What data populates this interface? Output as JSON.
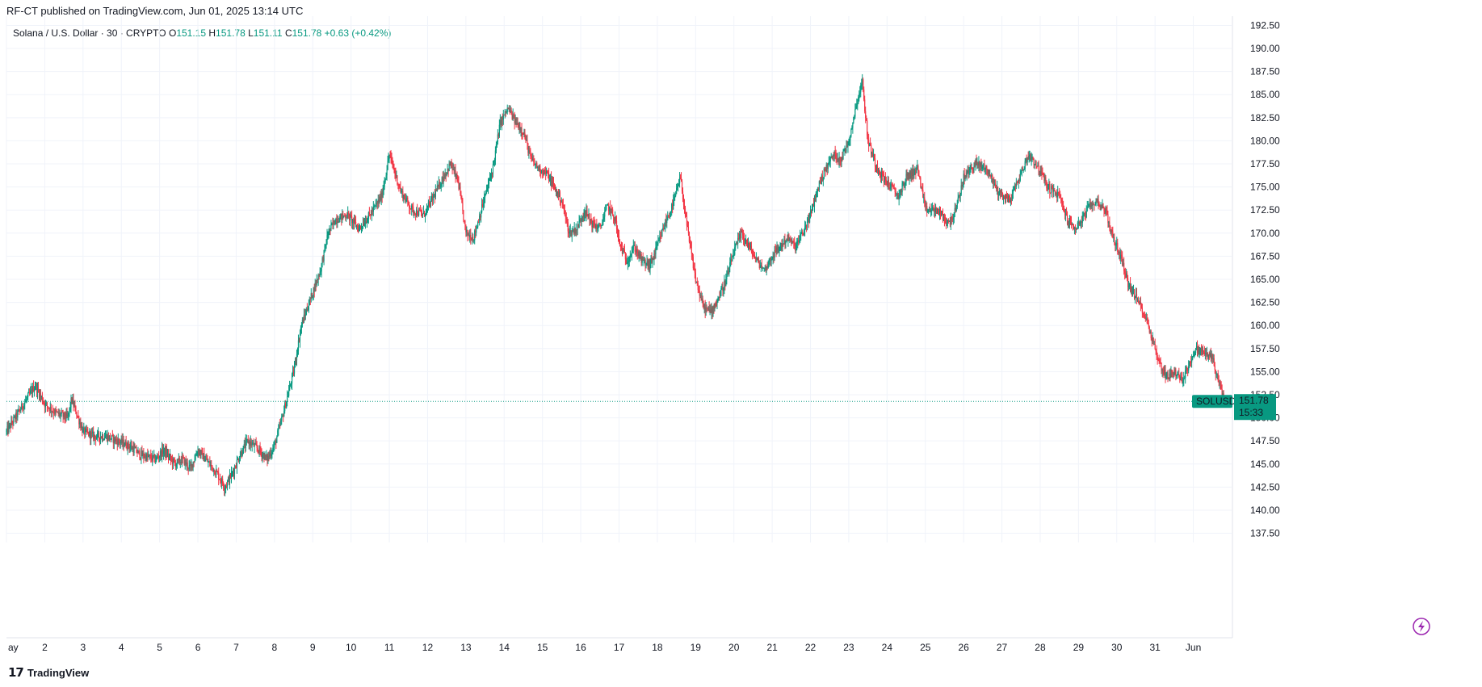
{
  "published": "RF-CT published on TradingView.com, Jun 01, 2025 13:14 UTC",
  "legend": {
    "symbol": "Solana / U.S. Dollar · 30 · CRYPTO",
    "o_label": "O",
    "o": "151.15",
    "h_label": "H",
    "h": "151.78",
    "l_label": "L",
    "l": "151.11",
    "c_label": "C",
    "c": "151.78",
    "change": "+0.63 (+0.42%)"
  },
  "price_tag": {
    "symbol": "SOLUSD",
    "price": "151.78",
    "countdown": "15:33"
  },
  "footer": {
    "brand": "TradingView"
  },
  "colors": {
    "up": "#089981",
    "down": "#f23645",
    "grid": "#f0f3fa",
    "tag": "#089981"
  },
  "chart_data": {
    "type": "candlestick",
    "timeframe": "30",
    "ylim": [
      136.5,
      193.5
    ],
    "y_ticks": [
      "192.50",
      "190.00",
      "187.50",
      "185.00",
      "182.50",
      "180.00",
      "177.50",
      "175.00",
      "172.50",
      "170.00",
      "167.50",
      "165.00",
      "162.50",
      "160.00",
      "157.50",
      "155.00",
      "152.50",
      "150.00",
      "147.50",
      "145.00",
      "142.50",
      "140.00",
      "137.50"
    ],
    "x_ticks": [
      "ay",
      "2",
      "3",
      "4",
      "5",
      "6",
      "7",
      "8",
      "9",
      "10",
      "11",
      "12",
      "13",
      "14",
      "15",
      "16",
      "17",
      "18",
      "19",
      "20",
      "21",
      "22",
      "23",
      "24",
      "25",
      "26",
      "27",
      "28",
      "29",
      "30",
      "31",
      "Jun"
    ],
    "x_tick_days": [
      1,
      2,
      3,
      4,
      5,
      6,
      7,
      8,
      9,
      10,
      11,
      12,
      13,
      14,
      15,
      16,
      17,
      18,
      19,
      20,
      21,
      22,
      23,
      24,
      25,
      26,
      27,
      28,
      29,
      30,
      31,
      32
    ],
    "x_range_days": [
      1.0,
      33.0
    ],
    "last_price": 151.78,
    "approx_close_path": [
      [
        1.0,
        148.5
      ],
      [
        1.3,
        150.5
      ],
      [
        1.6,
        152.5
      ],
      [
        1.75,
        153.5
      ],
      [
        2.0,
        151.5
      ],
      [
        2.3,
        150.5
      ],
      [
        2.6,
        150.0
      ],
      [
        2.7,
        152.0
      ],
      [
        3.0,
        148.5
      ],
      [
        3.3,
        148.0
      ],
      [
        3.6,
        148.0
      ],
      [
        3.9,
        147.5
      ],
      [
        4.2,
        147.0
      ],
      [
        4.5,
        146.0
      ],
      [
        4.9,
        145.5
      ],
      [
        5.1,
        146.5
      ],
      [
        5.4,
        145.0
      ],
      [
        5.6,
        145.5
      ],
      [
        5.8,
        144.5
      ],
      [
        6.0,
        146.5
      ],
      [
        6.3,
        145.0
      ],
      [
        6.5,
        144.0
      ],
      [
        6.7,
        142.5
      ],
      [
        6.9,
        144.0
      ],
      [
        7.1,
        146.0
      ],
      [
        7.3,
        147.5
      ],
      [
        7.6,
        146.5
      ],
      [
        7.8,
        145.5
      ],
      [
        8.0,
        147.0
      ],
      [
        8.2,
        150.0
      ],
      [
        8.5,
        155.0
      ],
      [
        8.7,
        160.0
      ],
      [
        8.95,
        163.0
      ],
      [
        9.2,
        166.0
      ],
      [
        9.4,
        170.0
      ],
      [
        9.6,
        171.5
      ],
      [
        9.9,
        172.0
      ],
      [
        10.2,
        170.5
      ],
      [
        10.5,
        172.0
      ],
      [
        10.8,
        174.0
      ],
      [
        11.0,
        178.5
      ],
      [
        11.3,
        174.5
      ],
      [
        11.6,
        172.5
      ],
      [
        11.9,
        172.0
      ],
      [
        12.1,
        173.5
      ],
      [
        12.4,
        176.0
      ],
      [
        12.6,
        177.5
      ],
      [
        12.8,
        175.5
      ],
      [
        13.0,
        170.0
      ],
      [
        13.2,
        169.5
      ],
      [
        13.5,
        174.0
      ],
      [
        13.7,
        177.0
      ],
      [
        13.9,
        182.0
      ],
      [
        14.1,
        183.5
      ],
      [
        14.3,
        182.0
      ],
      [
        14.5,
        181.0
      ],
      [
        14.7,
        178.0
      ],
      [
        14.9,
        177.0
      ],
      [
        15.1,
        176.5
      ],
      [
        15.3,
        175.0
      ],
      [
        15.5,
        173.5
      ],
      [
        15.7,
        170.0
      ],
      [
        15.9,
        170.5
      ],
      [
        16.1,
        172.5
      ],
      [
        16.3,
        171.0
      ],
      [
        16.5,
        170.5
      ],
      [
        16.7,
        173.0
      ],
      [
        16.9,
        171.5
      ],
      [
        17.0,
        169.0
      ],
      [
        17.2,
        167.0
      ],
      [
        17.4,
        168.5
      ],
      [
        17.6,
        167.0
      ],
      [
        17.8,
        166.5
      ],
      [
        17.95,
        168.0
      ],
      [
        18.2,
        171.0
      ],
      [
        18.4,
        173.0
      ],
      [
        18.6,
        176.0
      ],
      [
        18.8,
        170.0
      ],
      [
        19.0,
        165.0
      ],
      [
        19.2,
        162.0
      ],
      [
        19.4,
        161.5
      ],
      [
        19.6,
        163.0
      ],
      [
        19.8,
        165.0
      ],
      [
        20.0,
        168.0
      ],
      [
        20.2,
        170.0
      ],
      [
        20.4,
        168.5
      ],
      [
        20.6,
        167.0
      ],
      [
        20.8,
        166.0
      ],
      [
        21.0,
        167.5
      ],
      [
        21.2,
        168.5
      ],
      [
        21.4,
        169.5
      ],
      [
        21.6,
        168.5
      ],
      [
        21.8,
        170.0
      ],
      [
        22.0,
        172.0
      ],
      [
        22.2,
        175.0
      ],
      [
        22.4,
        177.0
      ],
      [
        22.6,
        178.5
      ],
      [
        22.8,
        178.0
      ],
      [
        23.0,
        180.0
      ],
      [
        23.2,
        184.0
      ],
      [
        23.35,
        186.5
      ],
      [
        23.5,
        180.0
      ],
      [
        23.7,
        177.5
      ],
      [
        23.9,
        176.0
      ],
      [
        24.1,
        175.0
      ],
      [
        24.3,
        174.0
      ],
      [
        24.5,
        176.0
      ],
      [
        24.8,
        177.0
      ],
      [
        25.0,
        172.5
      ],
      [
        25.3,
        172.5
      ],
      [
        25.6,
        171.0
      ],
      [
        25.8,
        172.5
      ],
      [
        26.0,
        176.0
      ],
      [
        26.3,
        177.5
      ],
      [
        26.6,
        177.0
      ],
      [
        26.9,
        174.5
      ],
      [
        27.2,
        173.5
      ],
      [
        27.5,
        176.5
      ],
      [
        27.7,
        178.5
      ],
      [
        27.9,
        177.5
      ],
      [
        28.2,
        175.0
      ],
      [
        28.5,
        174.0
      ],
      [
        28.7,
        171.5
      ],
      [
        28.9,
        170.5
      ],
      [
        29.1,
        171.5
      ],
      [
        29.3,
        173.0
      ],
      [
        29.5,
        173.5
      ],
      [
        29.7,
        172.5
      ],
      [
        29.9,
        169.5
      ],
      [
        30.1,
        167.5
      ],
      [
        30.3,
        164.5
      ],
      [
        30.5,
        163.0
      ],
      [
        30.7,
        161.5
      ],
      [
        30.9,
        159.0
      ],
      [
        31.1,
        156.0
      ],
      [
        31.3,
        154.5
      ],
      [
        31.5,
        155.0
      ],
      [
        31.7,
        154.0
      ],
      [
        31.9,
        156.0
      ],
      [
        32.1,
        157.5
      ],
      [
        32.3,
        157.0
      ],
      [
        32.5,
        156.5
      ],
      [
        32.65,
        154.0
      ],
      [
        32.8,
        151.78
      ]
    ]
  }
}
